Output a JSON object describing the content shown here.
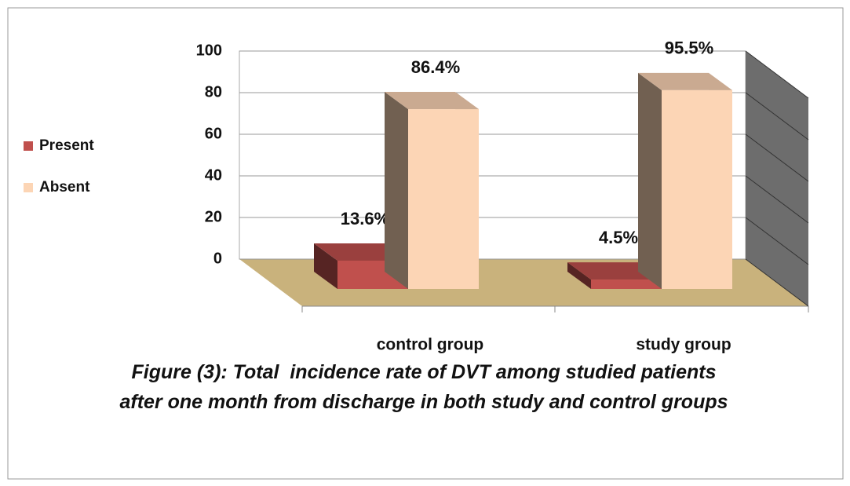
{
  "chart_data": {
    "type": "bar3d",
    "caption": "Figure (3): Total  incidence rate of DVT among studied patients after one month from discharge in both study and control groups",
    "categories": [
      "control group",
      "study group"
    ],
    "series": [
      {
        "name": "Present",
        "color": "#c0504d",
        "values": [
          13.6,
          4.5
        ],
        "value_labels": [
          "13.6%",
          "4.5%"
        ]
      },
      {
        "name": "Absent",
        "color": "#fcd5b5",
        "values": [
          86.4,
          95.5
        ],
        "value_labels": [
          "86.4%",
          "95.5%"
        ]
      }
    ],
    "ylim": [
      0,
      100
    ],
    "yticks": [
      0,
      20,
      40,
      60,
      80,
      100
    ],
    "grid": true,
    "legend": "left"
  }
}
